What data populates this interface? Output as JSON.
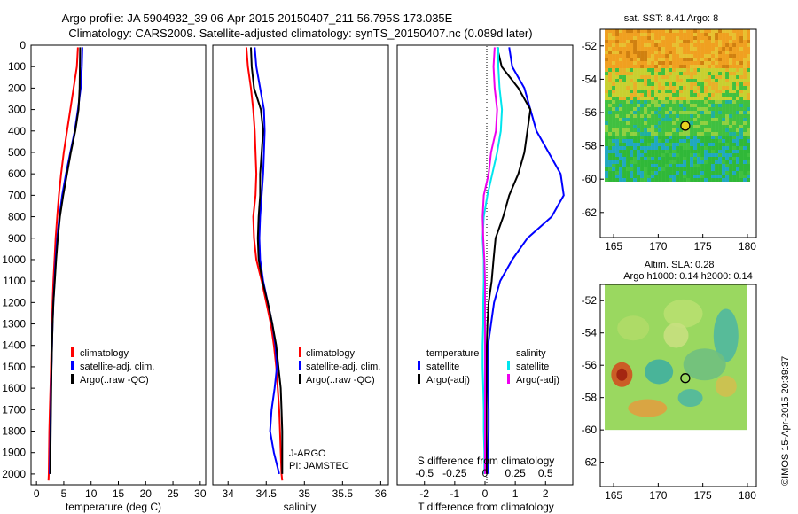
{
  "header": {
    "title_line1": "Argo profile: JA 5904932_39 06-Apr-2015 20150407_211 56.795S 173.035E",
    "title_line2": "Climatology: CARS2009. Satellite-adjusted climatology: synTS_20150407.nc (0.089d later)"
  },
  "credit": "©IMOS 15-Apr-2015 20:39:37",
  "colors": {
    "climatology": "#ff0000",
    "satellite": "#0000ff",
    "argo": "#000000",
    "salinity_satellite": "#00e5ee",
    "salinity_argo": "#ee00ee"
  },
  "chart_data": [
    {
      "type": "line",
      "id": "temperature",
      "xlabel": "temperature (deg C)",
      "ylabel": "",
      "xlim": [
        -1,
        31
      ],
      "ylim": [
        2050,
        0
      ],
      "xticks": [
        "0",
        "5",
        "10",
        "15",
        "20",
        "25",
        "30"
      ],
      "xtick_values": [
        0,
        5,
        10,
        15,
        20,
        25,
        30
      ],
      "yticks": [
        "0",
        "100",
        "200",
        "300",
        "400",
        "500",
        "600",
        "700",
        "800",
        "900",
        "1000",
        "1100",
        "1200",
        "1300",
        "1400",
        "1500",
        "1600",
        "1700",
        "1800",
        "1900",
        "2000"
      ],
      "ytick_values": [
        0,
        100,
        200,
        300,
        400,
        500,
        600,
        700,
        800,
        900,
        1000,
        1100,
        1200,
        1300,
        1400,
        1500,
        1600,
        1700,
        1800,
        1900,
        2000
      ],
      "legend": [
        "climatology",
        "satellite-adj. clim.",
        "Argo(..raw -QC)"
      ],
      "series": [
        {
          "name": "climatology",
          "color": "#ff0000",
          "x": [
            7.6,
            7.4,
            6.8,
            6.2,
            5.6,
            5.0,
            4.5,
            4.1,
            3.8,
            3.5,
            3.3,
            3.1,
            2.95,
            2.85,
            2.75,
            2.65,
            2.55,
            2.45,
            2.35,
            2.3,
            2.25,
            2.2
          ],
          "y": [
            10,
            100,
            200,
            300,
            400,
            500,
            600,
            700,
            800,
            900,
            1000,
            1100,
            1200,
            1300,
            1400,
            1500,
            1600,
            1700,
            1800,
            1900,
            2000,
            2030
          ]
        },
        {
          "name": "satellite-adj. clim.",
          "color": "#0000ff",
          "x": [
            8.4,
            8.3,
            8.1,
            7.6,
            7.0,
            6.2,
            5.4,
            4.7,
            4.2,
            3.8,
            3.5,
            3.3,
            3.1,
            2.95,
            2.85,
            2.75,
            2.65,
            2.6,
            2.55,
            2.5,
            2.45
          ],
          "y": [
            10,
            100,
            200,
            300,
            400,
            500,
            600,
            700,
            800,
            900,
            1000,
            1100,
            1200,
            1300,
            1400,
            1500,
            1600,
            1700,
            1800,
            1900,
            2000
          ]
        },
        {
          "name": "Argo(..raw -QC)",
          "color": "#000000",
          "x": [
            8.0,
            7.95,
            7.9,
            7.7,
            7.1,
            6.3,
            5.6,
            4.9,
            4.3,
            3.9,
            3.6,
            3.35,
            3.1,
            2.95,
            2.85,
            2.75,
            2.7,
            2.65,
            2.6,
            2.55,
            2.55
          ],
          "y": [
            10,
            100,
            200,
            300,
            400,
            500,
            600,
            700,
            800,
            900,
            1000,
            1100,
            1200,
            1300,
            1400,
            1500,
            1600,
            1700,
            1800,
            1900,
            2000
          ]
        }
      ]
    },
    {
      "type": "line",
      "id": "salinity",
      "xlabel": "salinity",
      "ylabel": "",
      "xlim": [
        33.8,
        36.1
      ],
      "ylim": [
        2050,
        0
      ],
      "xticks": [
        "34",
        "34.5",
        "35",
        "35.5",
        "36"
      ],
      "xtick_values": [
        34,
        34.5,
        35,
        35.5,
        36
      ],
      "legend": [
        "climatology",
        "satellite-adj. clim.",
        "Argo(..raw -QC)"
      ],
      "annotations": [
        "J-ARGO",
        "PI: JAMSTEC"
      ],
      "series": [
        {
          "name": "climatology",
          "color": "#ff0000",
          "x": [
            34.24,
            34.26,
            34.3,
            34.33,
            34.35,
            34.36,
            34.37,
            34.36,
            34.33,
            34.34,
            34.37,
            34.44,
            34.5,
            34.56,
            34.6,
            34.63,
            34.65,
            34.67,
            34.68,
            34.69,
            34.7,
            34.71
          ],
          "y": [
            10,
            100,
            200,
            300,
            400,
            500,
            600,
            700,
            800,
            900,
            1000,
            1100,
            1200,
            1300,
            1400,
            1500,
            1600,
            1700,
            1800,
            1900,
            2000,
            2030
          ]
        },
        {
          "name": "satellite-adj. clim.",
          "color": "#0000ff",
          "x": [
            34.35,
            34.37,
            34.42,
            34.47,
            34.48,
            34.47,
            34.46,
            34.44,
            34.42,
            34.41,
            34.42,
            34.46,
            34.52,
            34.58,
            34.62,
            34.64,
            34.61,
            34.57,
            34.55,
            34.6,
            34.67
          ],
          "y": [
            10,
            100,
            200,
            300,
            400,
            500,
            600,
            700,
            800,
            900,
            1000,
            1100,
            1200,
            1300,
            1400,
            1500,
            1600,
            1700,
            1800,
            1900,
            2000
          ]
        },
        {
          "name": "Argo(..raw -QC)",
          "color": "#000000",
          "x": [
            34.3,
            34.31,
            34.34,
            34.43,
            34.46,
            34.44,
            34.42,
            34.42,
            34.4,
            34.39,
            34.4,
            34.45,
            34.52,
            34.58,
            34.63,
            34.66,
            34.69,
            34.7,
            34.71,
            34.71,
            34.71
          ],
          "y": [
            10,
            100,
            200,
            300,
            400,
            500,
            600,
            700,
            800,
            900,
            1000,
            1100,
            1200,
            1300,
            1400,
            1500,
            1600,
            1700,
            1800,
            1900,
            2000
          ]
        }
      ]
    },
    {
      "type": "line",
      "id": "difference",
      "xlabel": "T difference from climatology",
      "xlabel_top": "S difference from climatology",
      "xlim": [
        -2.9,
        2.9
      ],
      "ylim": [
        2050,
        0
      ],
      "xticks": [
        "-2",
        "-1",
        "0",
        "1",
        "2"
      ],
      "xtick_values": [
        -2,
        -1,
        0,
        1,
        2
      ],
      "xticks_s": [
        "-0.5",
        "-0.25",
        "0",
        "0.25",
        "0.5"
      ],
      "xtick_s_values": [
        -0.5,
        -0.25,
        0,
        0.25,
        0.5
      ],
      "legend_headers": [
        "temperature",
        "salinity"
      ],
      "legend_temperature": [
        "satellite",
        "Argo(-adj)"
      ],
      "legend_salinity": [
        "satellite",
        "Argo(-adj)"
      ],
      "series": [
        {
          "name": "satellite",
          "group": "temperature",
          "color": "#0000ff",
          "x": [
            0.8,
            0.9,
            1.3,
            1.5,
            1.7,
            2.1,
            2.5,
            2.6,
            2.2,
            1.4,
            0.9,
            0.5,
            0.3,
            0.2,
            0.1,
            0.1,
            0.1,
            0.12,
            0.12,
            0.1,
            0.12
          ],
          "y": [
            10,
            100,
            200,
            300,
            400,
            500,
            600,
            700,
            800,
            900,
            1000,
            1100,
            1200,
            1300,
            1400,
            1500,
            1600,
            1700,
            1800,
            1900,
            2000
          ]
        },
        {
          "name": "Argo(-adj)",
          "group": "temperature",
          "color": "#000000",
          "x": [
            0.4,
            0.55,
            1.1,
            1.5,
            1.4,
            1.3,
            1.1,
            0.8,
            0.6,
            0.35,
            0.28,
            0.22,
            0.12,
            0.08,
            0.06,
            0.05,
            0.05,
            0.05,
            0.05,
            0.05,
            0.06
          ],
          "y": [
            10,
            100,
            200,
            300,
            400,
            500,
            600,
            700,
            800,
            900,
            1000,
            1100,
            1200,
            1300,
            1400,
            1500,
            1600,
            1700,
            1800,
            1900,
            2000
          ]
        },
        {
          "name": "satellite",
          "group": "salinity",
          "color": "#00e5ee",
          "x": [
            0.11,
            0.11,
            0.12,
            0.14,
            0.13,
            0.1,
            0.06,
            0.02,
            -0.01,
            -0.02,
            -0.01,
            -0.01,
            -0.015,
            -0.015,
            -0.02,
            -0.02,
            -0.015,
            -0.01,
            -0.01,
            -0.005,
            -0.005
          ],
          "y": [
            10,
            100,
            200,
            300,
            400,
            500,
            600,
            700,
            800,
            900,
            1000,
            1100,
            1200,
            1300,
            1400,
            1500,
            1600,
            1700,
            1800,
            1900,
            2000
          ]
        },
        {
          "name": "Argo(-adj)",
          "group": "salinity",
          "color": "#ee00ee",
          "x": [
            0.08,
            0.07,
            0.08,
            0.1,
            0.09,
            0.05,
            0.03,
            -0.01,
            -0.02,
            -0.015,
            -0.005,
            0.0,
            0.0,
            0.0,
            0.0,
            0.0,
            0.0,
            0.0,
            0.0,
            0.0,
            0.0
          ],
          "y": [
            10,
            100,
            200,
            300,
            400,
            500,
            600,
            700,
            800,
            900,
            1000,
            1100,
            1200,
            1300,
            1400,
            1500,
            1600,
            1700,
            1800,
            1900,
            2000
          ]
        }
      ]
    },
    {
      "type": "heatmap",
      "id": "sst_map",
      "title": "sat. SST: 8.41  Argo: 8",
      "xlim": [
        163.5,
        181
      ],
      "ylim": [
        -63.5,
        -51
      ],
      "xticks": [
        "165",
        "170",
        "175",
        "180"
      ],
      "xtick_values": [
        165,
        170,
        175,
        180
      ],
      "yticks": [
        "-52",
        "-54",
        "-56",
        "-58",
        "-60",
        "-62"
      ],
      "ytick_values": [
        -52,
        -54,
        -56,
        -58,
        -60,
        -62
      ],
      "marker": {
        "lon": 173.035,
        "lat": -56.795
      }
    },
    {
      "type": "heatmap",
      "id": "sla_map",
      "title": "Altim. SLA: 0.28",
      "subtitle": "Argo h1000: 0.14  h2000: 0.14",
      "xlim": [
        163.5,
        181
      ],
      "ylim": [
        -63.5,
        -51
      ],
      "xticks": [
        "165",
        "170",
        "175",
        "180"
      ],
      "xtick_values": [
        165,
        170,
        175,
        180
      ],
      "yticks": [
        "-52",
        "-54",
        "-56",
        "-58",
        "-60",
        "-62"
      ],
      "ytick_values": [
        -52,
        -54,
        -56,
        -58,
        -60,
        -62
      ],
      "marker": {
        "lon": 173.035,
        "lat": -56.795
      }
    }
  ]
}
